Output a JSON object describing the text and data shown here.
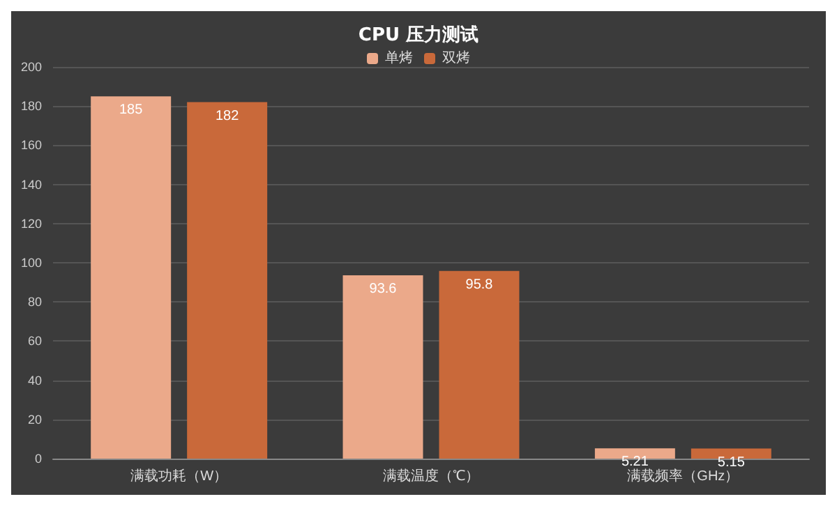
{
  "chart_data": {
    "type": "bar",
    "title": "CPU 压力测试",
    "categories": [
      "满载功耗（W）",
      "满载温度（℃）",
      "满载频率（GHz）"
    ],
    "series": [
      {
        "name": "单烤",
        "color": "#eba98a",
        "values": [
          185,
          93.6,
          5.21
        ]
      },
      {
        "name": "双烤",
        "color": "#c9693a",
        "values": [
          182,
          95.8,
          5.15
        ]
      }
    ],
    "ylim": [
      0,
      200
    ],
    "yticks": [
      0,
      20,
      40,
      60,
      80,
      100,
      120,
      140,
      160,
      180,
      200
    ],
    "grid": "y",
    "legend": "top",
    "data_labels": true
  }
}
